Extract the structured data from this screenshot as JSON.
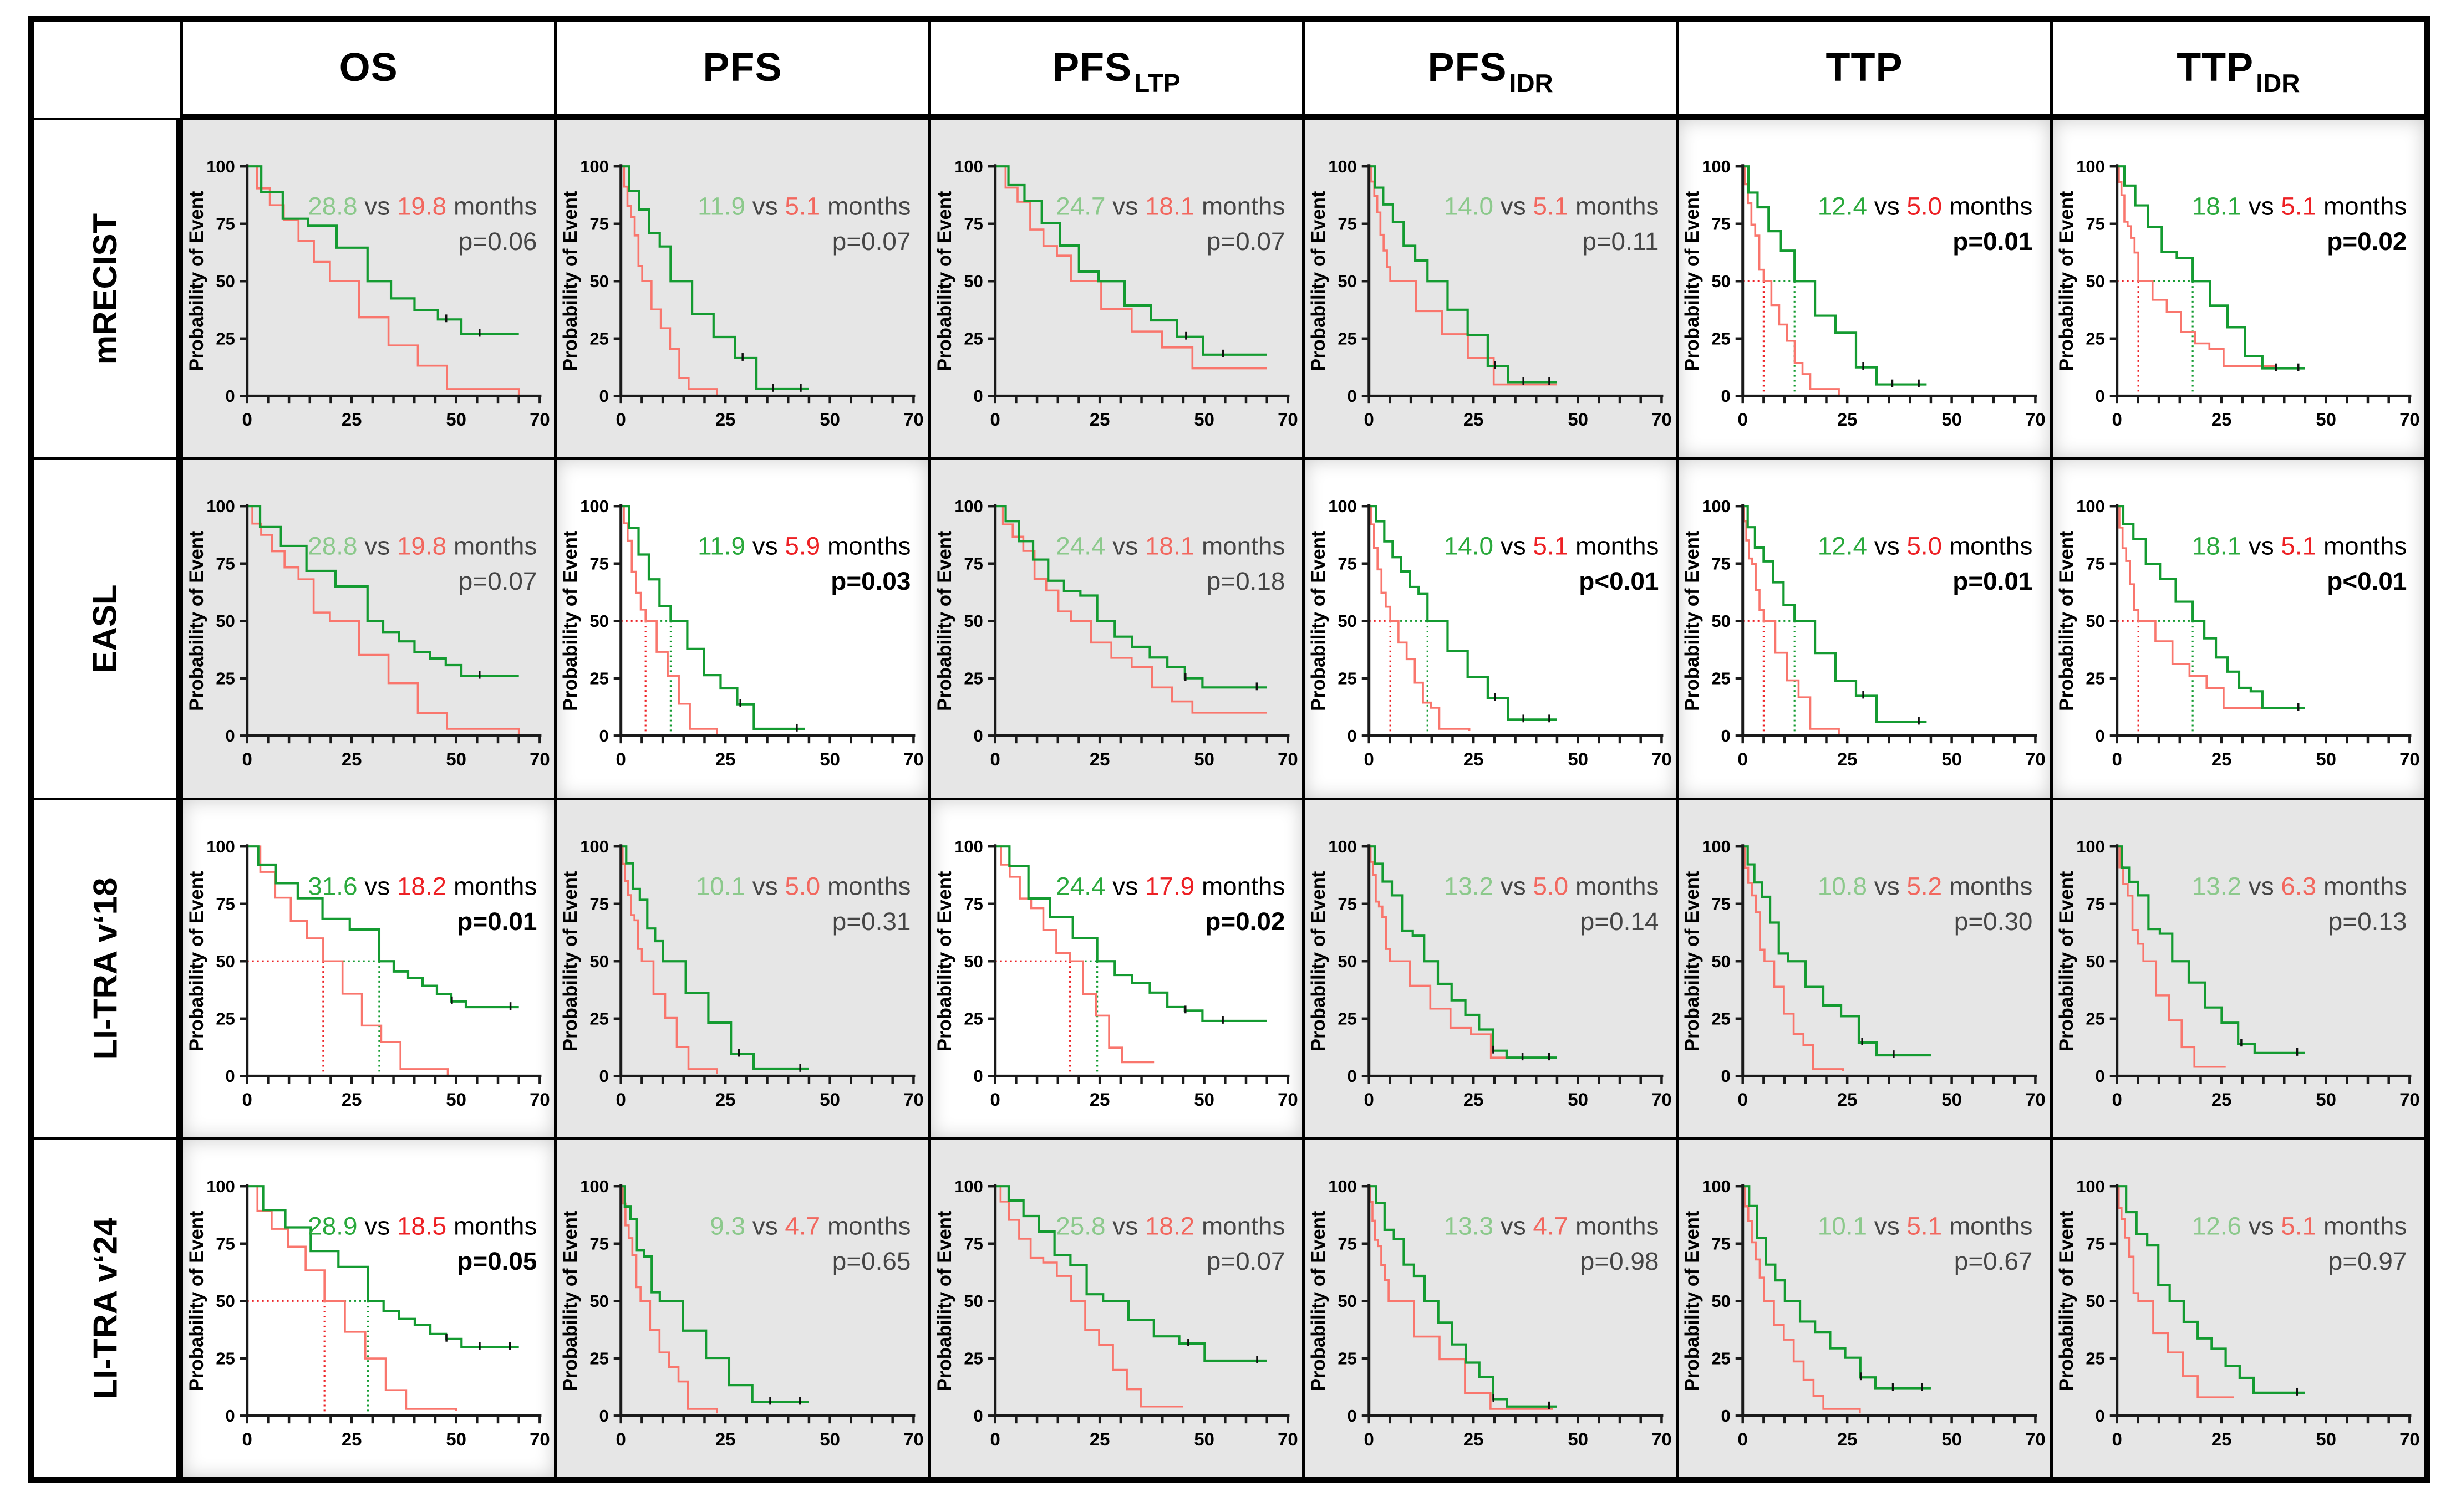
{
  "figure": {
    "y_axis_label": "Probability of Event",
    "y_ticks": [
      "100",
      "75",
      "50",
      "25",
      "0"
    ],
    "x_tick_labels": [
      "0",
      "25",
      "50",
      "70"
    ],
    "x_tick_values": [
      0,
      25,
      50,
      70
    ],
    "x_max": 70,
    "x_minor_step": 5,
    "vs_label": " vs ",
    "months_label": " months",
    "columns": [
      {
        "label": "OS",
        "sub": ""
      },
      {
        "label": "PFS",
        "sub": ""
      },
      {
        "label": "PFS",
        "sub": "LTP"
      },
      {
        "label": "PFS",
        "sub": "IDR"
      },
      {
        "label": "TTP",
        "sub": ""
      },
      {
        "label": "TTP",
        "sub": "IDR"
      }
    ],
    "rows": [
      "mRECIST",
      "EASL",
      "LI-TRA v‘18",
      "LI-TRA v‘24"
    ],
    "colors": {
      "green_strong": "#2aa93c",
      "green_muted": "#8cc98c",
      "red_strong": "#ed2024",
      "red_muted": "#f2675e",
      "curve_green": "#149b31",
      "curve_red": "#f9766d",
      "text_muted": "#454545",
      "text_strong": "#000000",
      "axis": "#1a1a1a",
      "cell_gray": "#e6e6e6",
      "cell_white": "#ffffff"
    }
  },
  "chart_data": [
    {
      "row": "mRECIST",
      "type": "kaplan-meier",
      "cells": [
        {
          "endpoint": "OS",
          "green_median": "28.8",
          "red_median": "19.8",
          "p": "p=0.06",
          "significant": false,
          "green_end": [
            65,
            27
          ],
          "red_end": [
            65,
            0
          ]
        },
        {
          "endpoint": "PFS",
          "green_median": "11.9",
          "red_median": "5.1",
          "p": "p=0.07",
          "significant": false,
          "green_end": [
            45,
            3
          ],
          "red_end": [
            23,
            0
          ]
        },
        {
          "endpoint": "PFS_LTP",
          "green_median": "24.7",
          "red_median": "18.1",
          "p": "p=0.07",
          "significant": false,
          "green_end": [
            65,
            18
          ],
          "red_end": [
            65,
            12
          ]
        },
        {
          "endpoint": "PFS_IDR",
          "green_median": "14.0",
          "red_median": "5.1",
          "p": "p=0.11",
          "significant": false,
          "green_end": [
            45,
            6
          ],
          "red_end": [
            45,
            5
          ]
        },
        {
          "endpoint": "TTP",
          "green_median": "12.4",
          "red_median": "5.0",
          "p": "p=0.01",
          "significant": true,
          "green_end": [
            44,
            5
          ],
          "red_end": [
            23,
            0
          ]
        },
        {
          "endpoint": "TTP_IDR",
          "green_median": "18.1",
          "red_median": "5.1",
          "p": "p=0.02",
          "significant": true,
          "green_end": [
            45,
            12
          ],
          "red_end": [
            38,
            13
          ]
        }
      ]
    },
    {
      "row": "EASL",
      "type": "kaplan-meier",
      "cells": [
        {
          "endpoint": "OS",
          "green_median": "28.8",
          "red_median": "19.8",
          "p": "p=0.07",
          "significant": false,
          "green_end": [
            65,
            26
          ],
          "red_end": [
            65,
            0
          ]
        },
        {
          "endpoint": "PFS",
          "green_median": "11.9",
          "red_median": "5.9",
          "p": "p=0.03",
          "significant": true,
          "green_end": [
            44,
            3
          ],
          "red_end": [
            23,
            0
          ]
        },
        {
          "endpoint": "PFS_LTP",
          "green_median": "24.4",
          "red_median": "18.1",
          "p": "p=0.18",
          "significant": false,
          "green_end": [
            65,
            21
          ],
          "red_end": [
            65,
            10
          ]
        },
        {
          "endpoint": "PFS_IDR",
          "green_median": "14.0",
          "red_median": "5.1",
          "p": "p<0.01",
          "significant": true,
          "green_end": [
            45,
            7
          ],
          "red_end": [
            24,
            2
          ]
        },
        {
          "endpoint": "TTP",
          "green_median": "12.4",
          "red_median": "5.0",
          "p": "p=0.01",
          "significant": true,
          "green_end": [
            44,
            6
          ],
          "red_end": [
            23,
            0
          ]
        },
        {
          "endpoint": "TTP_IDR",
          "green_median": "18.1",
          "red_median": "5.1",
          "p": "p<0.01",
          "significant": true,
          "green_end": [
            45,
            12
          ],
          "red_end": [
            38,
            12
          ]
        }
      ]
    },
    {
      "row": "LI-TRA v‘18",
      "type": "kaplan-meier",
      "cells": [
        {
          "endpoint": "OS",
          "green_median": "31.6",
          "red_median": "18.2",
          "p": "p=0.01",
          "significant": true,
          "green_end": [
            65,
            30
          ],
          "red_end": [
            48,
            0
          ]
        },
        {
          "endpoint": "PFS",
          "green_median": "10.1",
          "red_median": "5.0",
          "p": "p=0.31",
          "significant": false,
          "green_end": [
            45,
            3
          ],
          "red_end": [
            23,
            1
          ]
        },
        {
          "endpoint": "PFS_LTP",
          "green_median": "24.4",
          "red_median": "17.9",
          "p": "p=0.02",
          "significant": true,
          "green_end": [
            65,
            24
          ],
          "red_end": [
            38,
            6
          ]
        },
        {
          "endpoint": "PFS_IDR",
          "green_median": "13.2",
          "red_median": "5.0",
          "p": "p=0.14",
          "significant": false,
          "green_end": [
            45,
            8
          ],
          "red_end": [
            44,
            8
          ]
        },
        {
          "endpoint": "TTP",
          "green_median": "10.8",
          "red_median": "5.2",
          "p": "p=0.30",
          "significant": false,
          "green_end": [
            45,
            9
          ],
          "red_end": [
            24,
            2
          ]
        },
        {
          "endpoint": "TTP_IDR",
          "green_median": "13.2",
          "red_median": "6.3",
          "p": "p=0.13",
          "significant": false,
          "green_end": [
            45,
            10
          ],
          "red_end": [
            26,
            4
          ]
        }
      ]
    },
    {
      "row": "LI-TRA v‘24",
      "type": "kaplan-meier",
      "cells": [
        {
          "endpoint": "OS",
          "green_median": "28.9",
          "red_median": "18.5",
          "p": "p=0.05",
          "significant": true,
          "green_end": [
            65,
            30
          ],
          "red_end": [
            50,
            2
          ]
        },
        {
          "endpoint": "PFS",
          "green_median": "9.3",
          "red_median": "4.7",
          "p": "p=0.65",
          "significant": false,
          "green_end": [
            45,
            6
          ],
          "red_end": [
            23,
            1
          ]
        },
        {
          "endpoint": "PFS_LTP",
          "green_median": "25.8",
          "red_median": "18.2",
          "p": "p=0.07",
          "significant": false,
          "green_end": [
            65,
            24
          ],
          "red_end": [
            45,
            4
          ]
        },
        {
          "endpoint": "PFS_IDR",
          "green_median": "13.3",
          "red_median": "4.7",
          "p": "p=0.98",
          "significant": false,
          "green_end": [
            45,
            4
          ],
          "red_end": [
            44,
            3
          ]
        },
        {
          "endpoint": "TTP",
          "green_median": "10.1",
          "red_median": "5.1",
          "p": "p=0.67",
          "significant": false,
          "green_end": [
            45,
            12
          ],
          "red_end": [
            28,
            1
          ]
        },
        {
          "endpoint": "TTP_IDR",
          "green_median": "12.6",
          "red_median": "5.1",
          "p": "p=0.97",
          "significant": false,
          "green_end": [
            45,
            10
          ],
          "red_end": [
            28,
            8
          ]
        }
      ]
    }
  ]
}
